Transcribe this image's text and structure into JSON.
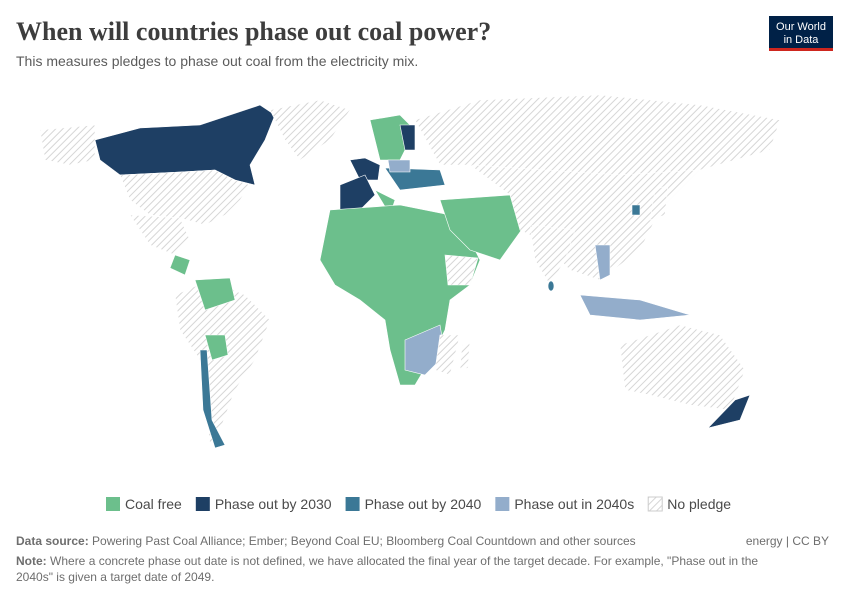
{
  "header": {
    "title": "When will countries phase out coal power?",
    "subtitle": "This measures pledges to phase out coal from the electricity mix.",
    "logo": [
      "Our World",
      "in Data"
    ]
  },
  "legend": [
    {
      "label": "Coal free",
      "color": "#6cbf8c"
    },
    {
      "label": "Phase out by 2030",
      "color": "#1e3f64"
    },
    {
      "label": "Phase out by 2040",
      "color": "#3b7896"
    },
    {
      "label": "Phase out in 2040s",
      "color": "#93adcb"
    },
    {
      "label": "No pledge",
      "color": "hatch"
    }
  ],
  "footer": {
    "source_label": "Data source:",
    "source": "Powering Past Coal Alliance; Ember; Beyond Coal EU; Bloomberg Coal Countdown and other sources",
    "license": "energy | CC BY",
    "note_label": "Note:",
    "note_line1": "Where a concrete phase out date is not defined, we have allocated the final year of the target decade. For example, \"Phase out in the",
    "note_line2": "2040s\" is given a target date of 2049."
  }
}
